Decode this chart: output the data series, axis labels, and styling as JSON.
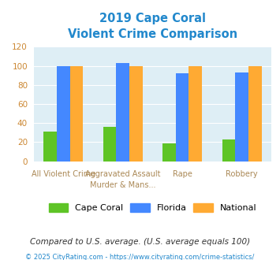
{
  "title_line1": "2019 Cape Coral",
  "title_line2": "Violent Crime Comparison",
  "x_labels_top": [
    "",
    "Aggravated Assault",
    "Rape",
    ""
  ],
  "x_labels_bottom": [
    "All Violent Crime",
    "Murder & Mans...",
    "",
    "Robbery"
  ],
  "cape_coral": [
    31,
    36,
    19,
    23
  ],
  "florida": [
    100,
    103,
    92,
    93
  ],
  "national": [
    100,
    100,
    100,
    100
  ],
  "bar_colors": {
    "cape_coral": "#5ec426",
    "florida": "#4488ff",
    "national": "#ffaa33"
  },
  "ylim": [
    0,
    120
  ],
  "yticks": [
    0,
    20,
    40,
    60,
    80,
    100,
    120
  ],
  "plot_bg": "#deeef5",
  "title_color": "#2288cc",
  "footer_text": "Compared to U.S. average. (U.S. average equals 100)",
  "footer_color": "#333333",
  "credit_text": "© 2025 CityRating.com - https://www.cityrating.com/crime-statistics/",
  "credit_color": "#2288cc",
  "legend_labels": [
    "Cape Coral",
    "Florida",
    "National"
  ]
}
